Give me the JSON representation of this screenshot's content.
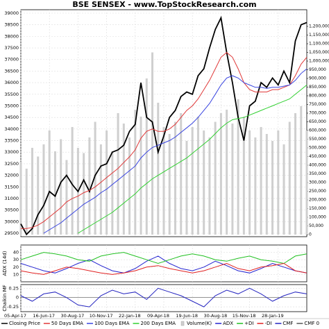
{
  "chart_data": [
    {
      "type": "line",
      "title": "BSE SENSEX - www.TopStockResearch.com",
      "x": [
        0,
        2,
        4,
        6,
        8,
        10,
        12,
        14,
        16,
        18,
        20,
        22,
        24,
        26,
        28,
        30,
        32,
        34,
        36,
        38,
        40,
        42,
        44,
        46,
        48,
        50,
        52,
        54,
        56,
        58,
        60,
        62,
        64,
        66,
        68,
        70,
        72,
        74,
        76,
        78,
        80,
        82,
        84,
        86,
        88,
        90,
        92,
        94,
        96,
        98,
        100
      ],
      "xlim": [
        0,
        100
      ],
      "ylim": [
        29350,
        39150
      ],
      "yticks": [
        29500,
        30000,
        30500,
        31000,
        31500,
        32000,
        32500,
        33000,
        33500,
        34000,
        34500,
        35000,
        35500,
        36000,
        36500,
        37000,
        37500,
        38000,
        38500,
        39000
      ],
      "y2lim": [
        -12000,
        1296000
      ],
      "y2ticks": [
        0,
        {
          "value": 50000,
          "label": "50,000"
        },
        {
          "value": 100000,
          "label": "100,000"
        },
        {
          "value": 150000,
          "label": "150,000"
        },
        {
          "value": 200000,
          "label": "200,000"
        },
        {
          "value": 250000,
          "label": "250,000"
        },
        {
          "value": 300000,
          "label": "300,000"
        },
        {
          "value": 350000,
          "label": "350,000"
        },
        {
          "value": 400000,
          "label": "400,000"
        },
        {
          "value": 450000,
          "label": "450,000"
        },
        {
          "value": 500000,
          "label": "500,000"
        },
        {
          "value": 550000,
          "label": "550,000"
        },
        {
          "value": 600000,
          "label": "600,000"
        },
        {
          "value": 650000,
          "label": "650,000"
        },
        {
          "value": 700000,
          "label": "700,000"
        },
        {
          "value": 750000,
          "label": "750,000"
        },
        {
          "value": 800000,
          "label": "800,000"
        },
        {
          "value": 850000,
          "label": "850,000"
        },
        {
          "value": 900000,
          "label": "900,000"
        },
        {
          "value": 950000,
          "label": "950,000"
        },
        {
          "value": 1000000,
          "label": "1,000,000"
        },
        {
          "value": 1050000,
          "label": "1,050,000"
        },
        {
          "value": 1100000,
          "label": "1,100,000"
        },
        {
          "value": 1150000,
          "label": "1,150,000"
        },
        {
          "value": 1200000,
          "label": "1,200,000"
        }
      ],
      "grid": true,
      "series": [
        {
          "name": "Closing Price",
          "color": "#000000",
          "values": [
            29900,
            29450,
            29700,
            30300,
            30700,
            31300,
            31100,
            31700,
            32000,
            31600,
            31300,
            31800,
            31300,
            32000,
            32400,
            32500,
            33000,
            33100,
            33300,
            33900,
            34200,
            36000,
            34500,
            34300,
            33000,
            33700,
            34500,
            34800,
            35400,
            35600,
            35500,
            36300,
            36600,
            37500,
            38300,
            38800,
            37300,
            36000,
            34500,
            33500,
            35000,
            35200,
            36000,
            35800,
            36200,
            35900,
            36500,
            36000,
            37800,
            38500,
            38600
          ]
        },
        {
          "name": "50 Days EMA",
          "color": "#e03838",
          "values": [
            29700,
            29700,
            29750,
            29850,
            30000,
            30200,
            30400,
            30600,
            30850,
            31000,
            31100,
            31250,
            31350,
            31500,
            31700,
            31900,
            32100,
            32300,
            32550,
            32800,
            33100,
            33600,
            33900,
            34000,
            33900,
            33900,
            34000,
            34200,
            34500,
            34800,
            35000,
            35300,
            35700,
            36100,
            36600,
            37100,
            37300,
            37100,
            36600,
            36000,
            35700,
            35600,
            35600,
            35600,
            35700,
            35700,
            35800,
            35900,
            36300,
            36800,
            37100
          ]
        },
        {
          "name": "100 Days EMA",
          "color": "#3844e0",
          "values": [
            null,
            null,
            null,
            null,
            29500,
            29650,
            29800,
            29950,
            30150,
            30350,
            30550,
            30750,
            30900,
            31050,
            31250,
            31400,
            31600,
            31800,
            32000,
            32200,
            32400,
            32750,
            33000,
            33200,
            33300,
            33400,
            33500,
            33650,
            33850,
            34050,
            34250,
            34500,
            34800,
            35100,
            35500,
            35900,
            36200,
            36300,
            36200,
            36000,
            35900,
            35800,
            35800,
            35750,
            35800,
            35800,
            35850,
            35900,
            36100,
            36400,
            36600
          ]
        },
        {
          "name": "200 Days EMA",
          "color": "#30d030",
          "values": [
            null,
            null,
            null,
            null,
            null,
            null,
            null,
            null,
            null,
            null,
            29500,
            29650,
            29800,
            29950,
            30100,
            30250,
            30400,
            30600,
            30800,
            31000,
            31200,
            31450,
            31650,
            31850,
            32000,
            32150,
            32300,
            32450,
            32600,
            32750,
            32950,
            33150,
            33350,
            33550,
            33800,
            34050,
            34250,
            34400,
            34450,
            34500,
            34600,
            34700,
            34800,
            34900,
            35000,
            35100,
            35200,
            35300,
            35500,
            35700,
            35900
          ]
        },
        {
          "name": "Volume(K)",
          "color": "#cfcfcf",
          "axis": "y2",
          "values": [
            420000,
            380000,
            500000,
            450000,
            520000,
            600000,
            480000,
            550000,
            430000,
            620000,
            500000,
            470000,
            560000,
            650000,
            520000,
            600000,
            480000,
            700000,
            640000,
            560000,
            720000,
            680000,
            900000,
            1050000,
            760000,
            620000,
            580000,
            650000,
            700000,
            540000,
            620000,
            680000,
            600000,
            560000,
            650000,
            700000,
            720000,
            640000,
            780000,
            680000,
            600000,
            560000,
            620000,
            580000,
            540000,
            600000,
            520000,
            650000,
            700000,
            740000,
            600000
          ]
        }
      ]
    },
    {
      "type": "line",
      "ylabel": "ADX (14d)",
      "x": [
        0,
        4,
        8,
        12,
        16,
        20,
        24,
        28,
        32,
        36,
        40,
        44,
        48,
        52,
        56,
        60,
        64,
        68,
        72,
        76,
        80,
        84,
        88,
        92,
        96,
        100
      ],
      "xlim": [
        0,
        100
      ],
      "ylim": [
        0,
        50
      ],
      "yticks": [
        10,
        20,
        30,
        40
      ],
      "series": [
        {
          "name": "ADX",
          "color": "#2424d0",
          "values": [
            25,
            20,
            15,
            12,
            18,
            25,
            30,
            22,
            15,
            12,
            18,
            28,
            35,
            25,
            18,
            15,
            20,
            28,
            22,
            15,
            12,
            18,
            25,
            20,
            15,
            12
          ]
        },
        {
          "name": "+DI",
          "color": "#20c020",
          "values": [
            30,
            35,
            40,
            38,
            35,
            30,
            28,
            35,
            38,
            40,
            35,
            30,
            25,
            30,
            35,
            38,
            35,
            30,
            28,
            32,
            35,
            30,
            28,
            25,
            35,
            38
          ]
        },
        {
          "name": "-DI",
          "color": "#e02020",
          "values": [
            15,
            12,
            10,
            15,
            20,
            18,
            15,
            12,
            10,
            12,
            15,
            20,
            22,
            18,
            15,
            12,
            15,
            20,
            25,
            18,
            15,
            20,
            22,
            25,
            15,
            12
          ]
        }
      ]
    },
    {
      "type": "line",
      "ylabel": "Chaikin MF",
      "x": [
        0,
        4,
        8,
        12,
        16,
        20,
        24,
        28,
        32,
        36,
        40,
        44,
        48,
        52,
        56,
        60,
        64,
        68,
        72,
        76,
        80,
        84,
        88,
        92,
        96,
        100
      ],
      "xlim": [
        0,
        100
      ],
      "ylim": [
        -0.38,
        0.35
      ],
      "yticks": [
        -0.25,
        0,
        0.25
      ],
      "xticks": [
        {
          "value": 0,
          "label": "05-Apr-17"
        },
        {
          "value": 10,
          "label": "16-Jun-17"
        },
        {
          "value": 20,
          "label": "30-Aug-17"
        },
        {
          "value": 30,
          "label": "10-Nov-17"
        },
        {
          "value": 40,
          "label": "22-Jan-18"
        },
        {
          "value": 50,
          "label": "09-Apr-18"
        },
        {
          "value": 60,
          "label": "19-Jun-18"
        },
        {
          "value": 70,
          "label": "30-Aug-18"
        },
        {
          "value": 80,
          "label": "15-Nov-18"
        },
        {
          "value": 90,
          "label": "28-Jan-19"
        }
      ],
      "series": [
        {
          "name": "CMF",
          "color": "#2424c0",
          "values": [
            0.05,
            -0.1,
            0.1,
            0.15,
            0.0,
            -0.2,
            -0.25,
            0.05,
            0.2,
            0.1,
            0.15,
            -0.05,
            0.25,
            0.15,
            0.05,
            -0.1,
            -0.25,
            0.05,
            0.2,
            0.1,
            0.25,
            0.1,
            -0.1,
            0.05,
            0.15,
            0.1
          ]
        }
      ],
      "reference_line": {
        "name": "CMF 0",
        "value": 0,
        "color": "#555555"
      }
    }
  ]
}
